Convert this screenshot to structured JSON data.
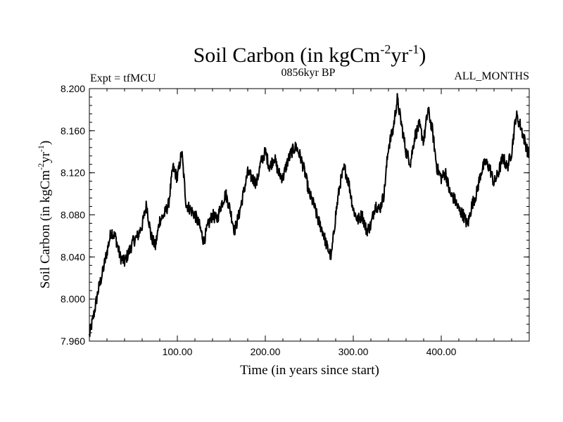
{
  "chart_data": {
    "type": "line",
    "title": "Soil Carbon (in kgCm",
    "title_units": {
      "base": "Soil Carbon (in kgCm",
      "sup1": "-2",
      "mid": "yr",
      "sup2": "-1",
      "end": ")"
    },
    "subtitle_left": "Expt = tfMCU",
    "subtitle_center": "0856kyr BP",
    "subtitle_right": "ALL_MONTHS",
    "xlabel": "Time (in years since start)",
    "ylabel_units": {
      "base": "Soil Carbon (in kgCm",
      "sup1": "-2",
      "mid": "yr",
      "sup2": "-1",
      "end": ")"
    },
    "xlim": [
      0,
      500
    ],
    "ylim": [
      7.96,
      8.2
    ],
    "x_ticks": [
      100,
      200,
      300,
      400
    ],
    "x_tick_labels": [
      "100.00",
      "200.00",
      "300.00",
      "400.00"
    ],
    "y_ticks": [
      7.96,
      8.0,
      8.04,
      8.08,
      8.12,
      8.16,
      8.2
    ],
    "y_tick_labels": [
      "7.960",
      "8.000",
      "8.040",
      "8.080",
      "8.120",
      "8.160",
      "8.200"
    ],
    "series": [
      {
        "name": "Soil Carbon",
        "color": "#000000",
        "x": [
          0,
          5,
          10,
          15,
          20,
          25,
          30,
          35,
          40,
          45,
          50,
          55,
          60,
          65,
          70,
          75,
          80,
          85,
          90,
          95,
          100,
          105,
          110,
          115,
          120,
          125,
          130,
          135,
          140,
          145,
          150,
          155,
          160,
          165,
          170,
          175,
          180,
          185,
          190,
          195,
          200,
          205,
          210,
          215,
          220,
          225,
          230,
          235,
          240,
          245,
          250,
          255,
          260,
          265,
          270,
          275,
          280,
          285,
          290,
          295,
          300,
          305,
          310,
          315,
          320,
          325,
          330,
          335,
          340,
          345,
          350,
          355,
          360,
          365,
          370,
          375,
          380,
          385,
          390,
          395,
          400,
          405,
          410,
          415,
          420,
          425,
          430,
          435,
          440,
          445,
          450,
          455,
          460,
          465,
          470,
          475,
          480,
          485,
          490,
          495,
          500
        ],
        "values": [
          7.965,
          7.985,
          8.008,
          8.025,
          8.045,
          8.065,
          8.058,
          8.04,
          8.035,
          8.045,
          8.055,
          8.06,
          8.07,
          8.09,
          8.06,
          8.05,
          8.075,
          8.08,
          8.09,
          8.125,
          8.115,
          8.14,
          8.09,
          8.085,
          8.08,
          8.07,
          8.055,
          8.07,
          8.08,
          8.075,
          8.09,
          8.1,
          8.085,
          8.065,
          8.08,
          8.1,
          8.12,
          8.115,
          8.11,
          8.13,
          8.14,
          8.125,
          8.135,
          8.12,
          8.115,
          8.13,
          8.14,
          8.145,
          8.135,
          8.12,
          8.1,
          8.09,
          8.075,
          8.065,
          8.05,
          8.04,
          8.08,
          8.11,
          8.125,
          8.11,
          8.085,
          8.075,
          8.08,
          8.065,
          8.07,
          8.09,
          8.085,
          8.1,
          8.145,
          8.16,
          8.19,
          8.165,
          8.14,
          8.13,
          8.155,
          8.165,
          8.15,
          8.18,
          8.16,
          8.125,
          8.115,
          8.12,
          8.1,
          8.095,
          8.085,
          8.08,
          8.07,
          8.09,
          8.1,
          8.12,
          8.13,
          8.125,
          8.11,
          8.12,
          8.135,
          8.125,
          8.14,
          8.175,
          8.165,
          8.15,
          8.135
        ]
      }
    ]
  }
}
